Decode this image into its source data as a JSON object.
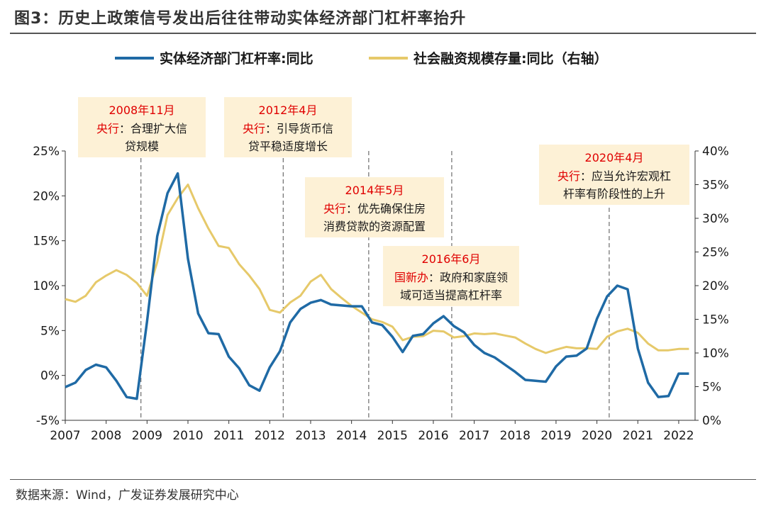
{
  "header": {
    "title": "图3：历史上政策信号发出后往往带动实体经济部门杠杆率抬升"
  },
  "footer": {
    "source": "数据来源：Wind，广发证券发展研究中心"
  },
  "chart_data": {
    "type": "line",
    "title": "历史上政策信号发出后往往带动实体经济部门杠杆率抬升",
    "x_ticks": [
      "2007",
      "2008",
      "2009",
      "2010",
      "2011",
      "2012",
      "2013",
      "2014",
      "2015",
      "2016",
      "2017",
      "2018",
      "2019",
      "2020",
      "2021",
      "2022"
    ],
    "x_range": [
      2007.0,
      2022.4
    ],
    "y_left": {
      "ticks": [
        "25%",
        "20%",
        "15%",
        "10%",
        "5%",
        "0%",
        "-5%"
      ],
      "range": [
        -5,
        25
      ]
    },
    "y_right": {
      "ticks": [
        "40%",
        "35%",
        "30%",
        "25%",
        "20%",
        "15%",
        "10%",
        "5%",
        "0%"
      ],
      "range": [
        0,
        40
      ]
    },
    "colors": {
      "series1": "#1f6aa5",
      "series2": "#e6c96a",
      "annotation_bg": "#fdf1d6",
      "annotation_highlight": "#e00000"
    },
    "series": [
      {
        "name": "实体经济部门杠杆率:同比",
        "axis": "left",
        "x": [
          2007.0,
          2007.25,
          2007.5,
          2007.75,
          2008.0,
          2008.25,
          2008.5,
          2008.75,
          2009.0,
          2009.25,
          2009.5,
          2009.75,
          2010.0,
          2010.25,
          2010.5,
          2010.75,
          2011.0,
          2011.25,
          2011.5,
          2011.75,
          2012.0,
          2012.25,
          2012.5,
          2012.75,
          2013.0,
          2013.25,
          2013.5,
          2013.75,
          2014.0,
          2014.25,
          2014.5,
          2014.75,
          2015.0,
          2015.25,
          2015.5,
          2015.75,
          2016.0,
          2016.25,
          2016.5,
          2016.75,
          2017.0,
          2017.25,
          2017.5,
          2017.75,
          2018.0,
          2018.25,
          2018.5,
          2018.75,
          2019.0,
          2019.25,
          2019.5,
          2019.75,
          2020.0,
          2020.25,
          2020.5,
          2020.75,
          2021.0,
          2021.25,
          2021.5,
          2021.75,
          2022.0,
          2022.25
        ],
        "y": [
          -1.3,
          -0.8,
          0.6,
          1.2,
          0.9,
          -0.6,
          -2.4,
          -2.6,
          6.0,
          15.5,
          20.3,
          22.5,
          13.0,
          6.9,
          4.7,
          4.6,
          2.1,
          0.8,
          -1.1,
          -1.7,
          0.9,
          2.7,
          5.9,
          7.4,
          8.1,
          8.4,
          7.9,
          7.8,
          7.7,
          7.7,
          5.9,
          5.6,
          4.3,
          2.6,
          4.4,
          4.6,
          5.8,
          6.6,
          5.5,
          4.8,
          3.4,
          2.5,
          2.0,
          1.2,
          0.4,
          -0.5,
          -0.6,
          -0.7,
          1.0,
          2.1,
          2.2,
          3.0,
          6.3,
          8.8,
          10.0,
          9.6,
          3.0,
          -0.8,
          -2.4,
          -2.3,
          0.2,
          0.2
        ]
      },
      {
        "name": "社会融资规模存量:同比（右轴）",
        "axis": "right",
        "x": [
          2007.0,
          2007.25,
          2007.5,
          2007.75,
          2008.0,
          2008.25,
          2008.5,
          2008.75,
          2009.0,
          2009.25,
          2009.5,
          2009.75,
          2010.0,
          2010.25,
          2010.5,
          2010.75,
          2011.0,
          2011.25,
          2011.5,
          2011.75,
          2012.0,
          2012.25,
          2012.5,
          2012.75,
          2013.0,
          2013.25,
          2013.5,
          2013.75,
          2014.0,
          2014.25,
          2014.5,
          2014.75,
          2015.0,
          2015.25,
          2015.5,
          2015.75,
          2016.0,
          2016.25,
          2016.5,
          2016.75,
          2017.0,
          2017.25,
          2017.5,
          2017.75,
          2018.0,
          2018.25,
          2018.5,
          2018.75,
          2019.0,
          2019.25,
          2019.5,
          2019.75,
          2020.0,
          2020.25,
          2020.5,
          2020.75,
          2021.0,
          2021.25,
          2021.5,
          2021.75,
          2022.0,
          2022.25
        ],
        "y": [
          18.0,
          17.6,
          18.5,
          20.5,
          21.5,
          22.3,
          21.6,
          20.4,
          18.5,
          23.5,
          30.5,
          33.0,
          35.0,
          31.5,
          28.5,
          25.9,
          25.6,
          23.2,
          21.5,
          19.5,
          16.4,
          16.0,
          17.5,
          18.5,
          20.6,
          21.6,
          19.5,
          18.2,
          17.0,
          16.0,
          15.0,
          14.6,
          13.9,
          11.9,
          12.4,
          12.5,
          13.3,
          13.2,
          12.3,
          12.5,
          12.9,
          12.8,
          12.9,
          12.6,
          12.3,
          11.4,
          10.6,
          10.0,
          10.5,
          10.9,
          10.7,
          10.7,
          10.6,
          12.4,
          13.2,
          13.6,
          13.0,
          11.4,
          10.4,
          10.4,
          10.6,
          10.6
        ]
      }
    ],
    "legend": {
      "position": "top-center"
    },
    "annotations": [
      {
        "x": 2008.85,
        "date": "2008年11月",
        "org": "央行",
        "text": [
          "：合理扩大信",
          "贷规模"
        ]
      },
      {
        "x": 2012.33,
        "date": "2012年4月",
        "org": "央行",
        "text": [
          "：引导货币信",
          "贷平稳适度增长"
        ]
      },
      {
        "x": 2014.42,
        "date": "2014年5月",
        "org": "央行",
        "text": [
          "：优先确保住房",
          "消费贷款的资源配置"
        ]
      },
      {
        "x": 2016.45,
        "date": "2016年6月",
        "org": "国新办",
        "text": [
          "：政府和家庭领",
          "域可适当提高杠杆率"
        ]
      },
      {
        "x": 2020.3,
        "date": "2020年4月",
        "org": "央行",
        "text": [
          "：应当允许宏观杠",
          "杆率有阶段性的上升"
        ]
      }
    ]
  }
}
